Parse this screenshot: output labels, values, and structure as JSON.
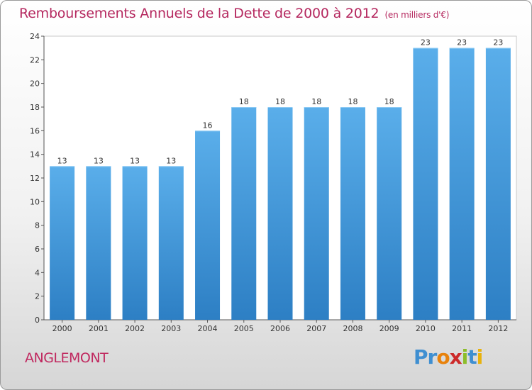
{
  "chart_data": {
    "type": "bar",
    "title": "Remboursements Annuels de la Dette de 2000 à 2012",
    "unit": "(en milliers d'€)",
    "categories": [
      "2000",
      "2001",
      "2002",
      "2003",
      "2004",
      "2005",
      "2006",
      "2007",
      "2008",
      "2009",
      "2010",
      "2011",
      "2012"
    ],
    "values": [
      13,
      13,
      13,
      13,
      16,
      18,
      18,
      18,
      18,
      18,
      23,
      23,
      23
    ],
    "data_labels": [
      "13",
      "13",
      "13",
      "13",
      "16",
      "18",
      "18",
      "18",
      "18",
      "18",
      "23",
      "23",
      "23"
    ],
    "yticks": [
      "0",
      "2",
      "4",
      "6",
      "8",
      "10",
      "12",
      "14",
      "16",
      "18",
      "20",
      "22",
      "24"
    ],
    "ylim": [
      0,
      24
    ],
    "xlabel": "",
    "ylabel": "",
    "grid": false,
    "bar_color": "#3b8fd6"
  },
  "footer": {
    "commune": "ANGLEMONT",
    "logo": [
      "P",
      "r",
      "o",
      "x",
      "i",
      "t",
      "i"
    ],
    "logo_colors": [
      "#3f8fd1",
      "#3f8fd1",
      "#e8820c",
      "#cc2a2a",
      "#8cbd2a",
      "#3f8fd1",
      "#e8b20c"
    ]
  }
}
